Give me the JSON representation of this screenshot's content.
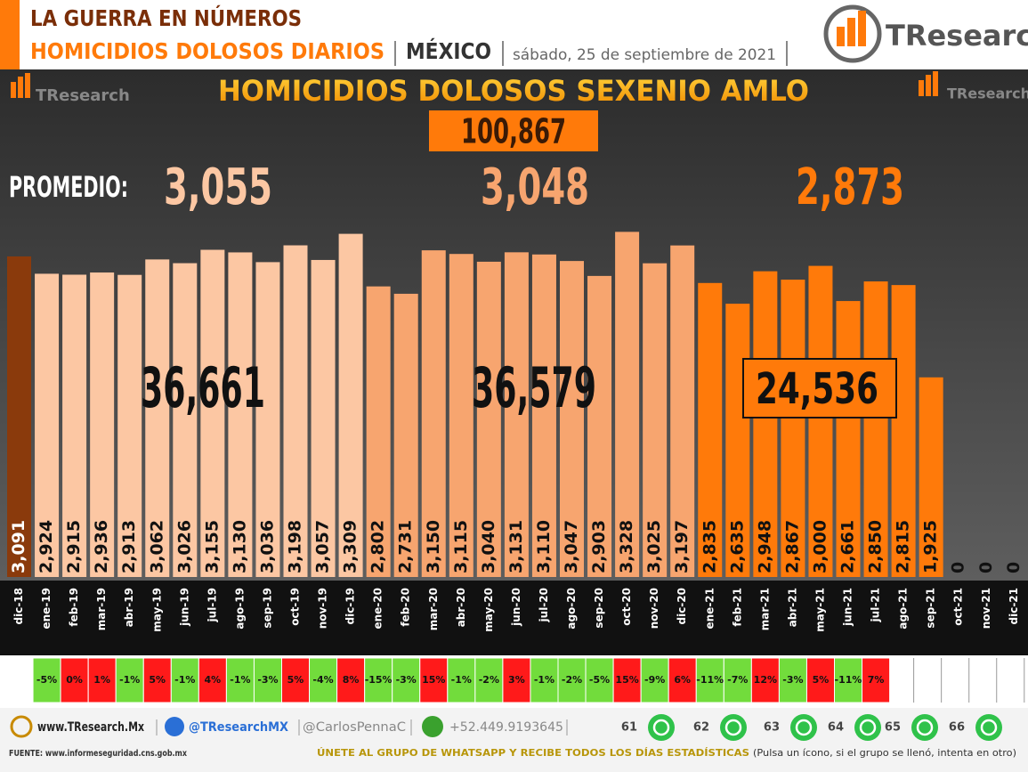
{
  "header": {
    "line1": "LA GUERRA EN NÚMEROS",
    "line2": "HOMICIDIOS DOLOSOS DIARIOS",
    "country": "MÉXICO",
    "date": "sábado, 25 de septiembre de 2021",
    "brand": "TResearch"
  },
  "chart_data": {
    "type": "bar",
    "title": "HOMICIDIOS DOLOSOS SEXENIO AMLO",
    "total": "100,867",
    "average_label": "PROMEDIO:",
    "averages": [
      {
        "label": "3,055",
        "color": "#fcc7a3"
      },
      {
        "label": "3,048",
        "color": "#f7a56f"
      },
      {
        "label": "2,873",
        "color": "#ff7a0a"
      }
    ],
    "period_totals": [
      "36,661",
      "36,579",
      "24,536"
    ],
    "categories": [
      "dic-18",
      "ene-19",
      "feb-19",
      "mar-19",
      "abr-19",
      "may-19",
      "jun-19",
      "jul-19",
      "ago-19",
      "sep-19",
      "oct-19",
      "nov-19",
      "dic-19",
      "ene-20",
      "feb-20",
      "mar-20",
      "abr-20",
      "may-20",
      "jun-20",
      "jul-20",
      "ago-20",
      "sep-20",
      "oct-20",
      "nov-20",
      "dic-20",
      "ene-21",
      "feb-21",
      "mar-21",
      "abr-21",
      "may-21",
      "jun-21",
      "jul-21",
      "ago-21",
      "sep-21",
      "oct-21",
      "nov-21",
      "dic-21"
    ],
    "values": [
      3091,
      2924,
      2915,
      2936,
      2913,
      3062,
      3026,
      3155,
      3130,
      3036,
      3198,
      3057,
      3309,
      2802,
      2731,
      3150,
      3115,
      3040,
      3131,
      3110,
      3047,
      2903,
      3328,
      3025,
      3197,
      2835,
      2635,
      2948,
      2867,
      3000,
      2661,
      2850,
      2815,
      1925,
      0,
      0,
      0
    ],
    "value_labels": [
      "3,091",
      "2,924",
      "2,915",
      "2,936",
      "2,913",
      "3,062",
      "3,026",
      "3,155",
      "3,130",
      "3,036",
      "3,198",
      "3,057",
      "3,309",
      "2,802",
      "2,731",
      "3,150",
      "3,115",
      "3,040",
      "3,131",
      "3,110",
      "3,047",
      "2,903",
      "3,328",
      "3,025",
      "3,197",
      "2,835",
      "2,635",
      "2,948",
      "2,867",
      "3,000",
      "2,661",
      "2,850",
      "2,815",
      "1,925",
      "0",
      "0",
      "0"
    ],
    "colors": [
      "#8a3a0c",
      "#fcc7a3",
      "#fcc7a3",
      "#fcc7a3",
      "#fcc7a3",
      "#fcc7a3",
      "#fcc7a3",
      "#fcc7a3",
      "#fcc7a3",
      "#fcc7a3",
      "#fcc7a3",
      "#fcc7a3",
      "#fcc7a3",
      "#f7a56f",
      "#f7a56f",
      "#f7a56f",
      "#f7a56f",
      "#f7a56f",
      "#f7a56f",
      "#f7a56f",
      "#f7a56f",
      "#f7a56f",
      "#f7a56f",
      "#f7a56f",
      "#f7a56f",
      "#ff7a0a",
      "#ff7a0a",
      "#ff7a0a",
      "#ff7a0a",
      "#ff7a0a",
      "#ff7a0a",
      "#ff7a0a",
      "#ff7a0a",
      "#ff7a0a",
      "#ff7a0a",
      "#ff7a0a",
      "#ff7a0a"
    ],
    "ylim": [
      0,
      3400
    ],
    "changes": [
      {
        "label": "-5%",
        "color": "#72dc3c"
      },
      {
        "label": "0%",
        "color": "#ff1a1a"
      },
      {
        "label": "1%",
        "color": "#ff1a1a"
      },
      {
        "label": "-1%",
        "color": "#72dc3c"
      },
      {
        "label": "5%",
        "color": "#ff1a1a"
      },
      {
        "label": "-1%",
        "color": "#72dc3c"
      },
      {
        "label": "4%",
        "color": "#ff1a1a"
      },
      {
        "label": "-1%",
        "color": "#72dc3c"
      },
      {
        "label": "-3%",
        "color": "#72dc3c"
      },
      {
        "label": "5%",
        "color": "#ff1a1a"
      },
      {
        "label": "-4%",
        "color": "#72dc3c"
      },
      {
        "label": "8%",
        "color": "#ff1a1a"
      },
      {
        "label": "-15%",
        "color": "#72dc3c"
      },
      {
        "label": "-3%",
        "color": "#72dc3c"
      },
      {
        "label": "15%",
        "color": "#ff1a1a"
      },
      {
        "label": "-1%",
        "color": "#72dc3c"
      },
      {
        "label": "-2%",
        "color": "#72dc3c"
      },
      {
        "label": "3%",
        "color": "#ff1a1a"
      },
      {
        "label": "-1%",
        "color": "#72dc3c"
      },
      {
        "label": "-2%",
        "color": "#72dc3c"
      },
      {
        "label": "-5%",
        "color": "#72dc3c"
      },
      {
        "label": "15%",
        "color": "#ff1a1a"
      },
      {
        "label": "-9%",
        "color": "#72dc3c"
      },
      {
        "label": "6%",
        "color": "#ff1a1a"
      },
      {
        "label": "-11%",
        "color": "#72dc3c"
      },
      {
        "label": "-7%",
        "color": "#72dc3c"
      },
      {
        "label": "12%",
        "color": "#ff1a1a"
      },
      {
        "label": "-3%",
        "color": "#72dc3c"
      },
      {
        "label": "5%",
        "color": "#ff1a1a"
      },
      {
        "label": "-11%",
        "color": "#72dc3c"
      },
      {
        "label": "7%",
        "color": "#ff1a1a"
      }
    ]
  },
  "footer": {
    "website": "www.TResearch.Mx",
    "twitter": "@TResearchMX",
    "author": "@CarlosPennaC",
    "phone": "+52.449.9193645",
    "groups": [
      "61",
      "62",
      "63",
      "64",
      "65",
      "66"
    ],
    "source": "FUENTE: www.informeseguridad.cns.gob.mx",
    "cta": "ÚNETE AL GRUPO DE WHATSAPP Y RECIBE TODOS LOS DÍAS ESTADÍSTICAS",
    "cta_note": "(Pulsa un ícono, si el grupo se llenó, intenta en otro)"
  }
}
